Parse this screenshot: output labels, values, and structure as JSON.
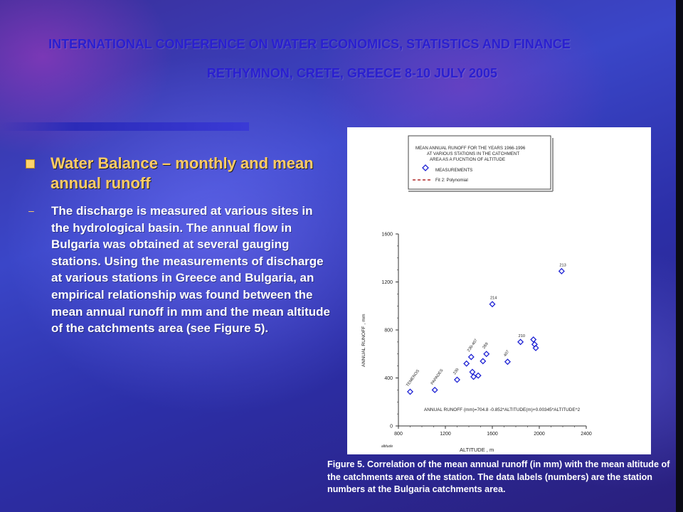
{
  "slide": {
    "title_line1": "INTERNATIONAL CONFERENCE ON WATER ECONOMICS, STATISTICS AND FINANCE",
    "title_line2": "RETHYMNON, CRETE, GREECE 8-10 JULY 2005",
    "bullet_heading": "Water Balance – monthly and mean annual runoff",
    "body_dash": "–",
    "body_text": "The   discharge   is measured at various  sites in the hydrological basin.   The annual flow in Bulgaria was obtained   at several gauging stations. Using the  measurements  of discharge   at various  stations  in Greece and Bulgaria, an empirical relationship was found between  the mean annual runoff  in mm  and the mean altitude of the catchments  area (see  Figure 5).",
    "caption": "Figure 5.  Correlation of the mean annual runoff (in mm) with the mean altitude of the catchments area of the station.  The data labels (numbers) are the station numbers at the Bulgaria catchments area.",
    "accent_heading_color": "#ffcc66",
    "title_color": "#2a1fd0"
  },
  "chart_data": {
    "type": "scatter",
    "legend_title": "MEAN  ANNUAL  RUNOFF  FOR THE YEARS  1966-1996\nAT VARIOUS STATIONS IN THE CATCHMENT\nAREA AS A FUCNTION OF ALTITUDE",
    "legend_placement": "top-right",
    "xlabel": "ALTITUDE , m",
    "ylabel": "ANNUAL  RUNOFF , mm",
    "corner_label": "altitude",
    "xlim": [
      800,
      2400
    ],
    "ylim": [
      0,
      1600
    ],
    "xticks": [
      "800",
      "1200",
      "1600",
      "2000",
      "2400"
    ],
    "yticks": [
      "0",
      "400",
      "800",
      "1200",
      "1600"
    ],
    "equation": "ANNUAL  RUNOFF  (mm)=704.8 -0.852*ALTITUDE(m)+0.00345*ALTITUDE^2",
    "series": [
      {
        "name": "MEASUREMENTS",
        "marker": "diamond",
        "color": "#1f23d4",
        "points": [
          {
            "x": 900,
            "y": 285,
            "label": "TEMENOS"
          },
          {
            "x": 1110,
            "y": 300,
            "label": "PAPADES"
          },
          {
            "x": 1300,
            "y": 385,
            "label": "230"
          },
          {
            "x": 1380,
            "y": 520,
            "label": ""
          },
          {
            "x": 1420,
            "y": 575,
            "label": "230-407"
          },
          {
            "x": 1430,
            "y": 450,
            "label": ""
          },
          {
            "x": 1440,
            "y": 410,
            "label": ""
          },
          {
            "x": 1480,
            "y": 420,
            "label": ""
          },
          {
            "x": 1520,
            "y": 540,
            "label": ""
          },
          {
            "x": 1550,
            "y": 600,
            "label": "269"
          },
          {
            "x": 1600,
            "y": 1015,
            "label": "214"
          },
          {
            "x": 1730,
            "y": 535,
            "label": "407"
          },
          {
            "x": 1840,
            "y": 700,
            "label": "210"
          },
          {
            "x": 1950,
            "y": 720,
            "label": ""
          },
          {
            "x": 1960,
            "y": 680,
            "label": ""
          },
          {
            "x": 1970,
            "y": 650,
            "label": ""
          },
          {
            "x": 2190,
            "y": 1290,
            "label": "213"
          }
        ]
      },
      {
        "name": "Fit 2:  Polynomial",
        "style": "dashed",
        "color": "#b02a2a",
        "equation_coeffs": [
          704.8,
          -0.852,
          0.00345
        ]
      }
    ],
    "grid": false
  }
}
